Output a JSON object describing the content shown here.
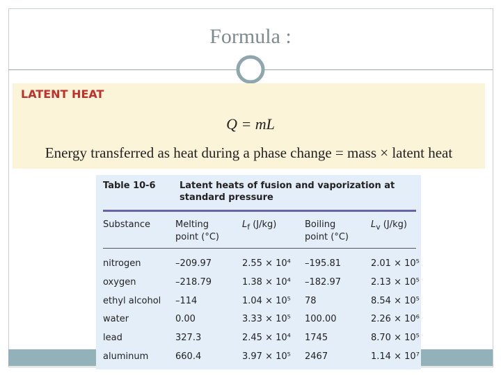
{
  "slide": {
    "title": "Formula :"
  },
  "box": {
    "heading": "LATENT HEAT",
    "formula": "Q = mL",
    "statement": "Energy transferred as heat during a phase change = mass × latent heat"
  },
  "table": {
    "label": "Table 10-6",
    "caption_lines": [
      "Latent heats of fusion and vaporization at",
      "standard pressure"
    ],
    "headers": [
      {
        "lines": [
          "Substance"
        ]
      },
      {
        "lines": [
          "Melting",
          "point (°C)"
        ]
      },
      {
        "symbol": "L",
        "sub": "f",
        "unit": " (J/kg)"
      },
      {
        "lines": [
          "Boiling",
          "point (°C)"
        ]
      },
      {
        "symbol": "L",
        "sub": "v",
        "unit": " (J/kg)"
      }
    ],
    "rows": [
      [
        "nitrogen",
        "–209.97",
        "2.55 × 10⁴",
        "–195.81",
        "2.01 × 10⁵"
      ],
      [
        "oxygen",
        "–218.79",
        "1.38 × 10⁴",
        "–182.97",
        "2.13 × 10⁵"
      ],
      [
        "ethyl alcohol",
        "–114",
        "1.04 × 10⁵",
        "78",
        "8.54 × 10⁵"
      ],
      [
        "water",
        "0.00",
        "3.33 × 10⁵",
        "100.00",
        "2.26 × 10⁶"
      ],
      [
        "lead",
        "327.3",
        "2.45 × 10⁴",
        "1745",
        "8.70 × 10⁵"
      ],
      [
        "aluminum",
        "660.4",
        "3.97 × 10⁵",
        "2467",
        "1.14 × 10⁷"
      ]
    ]
  }
}
